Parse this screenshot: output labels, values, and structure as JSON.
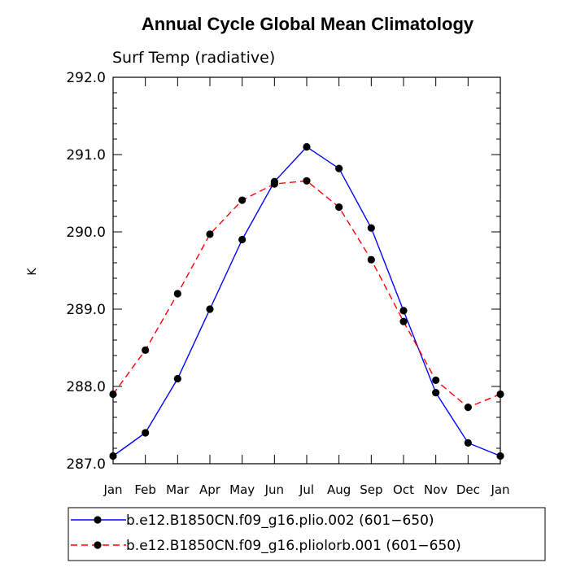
{
  "chart_data": {
    "type": "line",
    "title": "Annual Cycle Global Mean Climatology",
    "subtitle": "Surf Temp (radiative)",
    "xlabel": "",
    "ylabel": "K",
    "categories": [
      "Jan",
      "Feb",
      "Mar",
      "Apr",
      "May",
      "Jun",
      "Jul",
      "Aug",
      "Sep",
      "Oct",
      "Nov",
      "Dec",
      "Jan"
    ],
    "ylim": [
      287.0,
      292.0
    ],
    "yticks": [
      "287.0",
      "288.0",
      "289.0",
      "290.0",
      "291.0",
      "292.0"
    ],
    "series": [
      {
        "name": "b.e12.B1850CN.f09_g16.plio.002 (601−650)",
        "color": "#0000ff",
        "dash": "solid",
        "values": [
          287.1,
          287.4,
          288.1,
          289.0,
          289.9,
          290.65,
          291.1,
          290.82,
          290.05,
          288.98,
          287.92,
          287.27,
          287.1
        ]
      },
      {
        "name": "b.e12.B1850CN.f09_g16.pliolorb.001 (601−650)",
        "color": "#ff0000",
        "dash": "dashed",
        "values": [
          287.9,
          288.47,
          289.2,
          289.97,
          290.41,
          290.62,
          290.66,
          290.32,
          289.64,
          288.84,
          288.08,
          287.73,
          287.9
        ]
      }
    ]
  }
}
